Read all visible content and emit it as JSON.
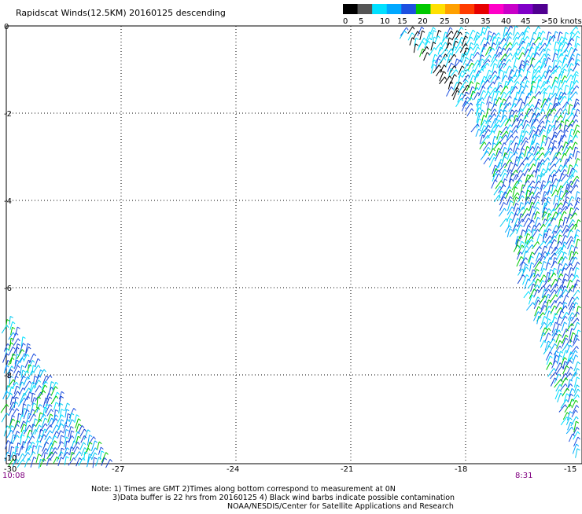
{
  "title": "Rapidscat Winds(12.5KM) 20160125 descending",
  "colorbar": {
    "labels": [
      "0",
      "5",
      "10",
      "15",
      "20",
      "25",
      "30",
      "35",
      "40",
      "45",
      ">50 knots"
    ],
    "colors": [
      "#000000",
      "#555555",
      "#00e0ff",
      "#00a8ff",
      "#1e50e0",
      "#00c800",
      "#ffe000",
      "#ffa000",
      "#ff3c00",
      "#e60000",
      "#ff00c8",
      "#c800c8",
      "#8000c8",
      "#500090"
    ]
  },
  "map": {
    "x_ticks": [
      "-30",
      "-27",
      "-24",
      "-21",
      "-18",
      "-15"
    ],
    "y_ticks": [
      "0",
      "-2",
      "-4",
      "-6",
      "-8",
      "-10"
    ],
    "x_range": [
      -30,
      -15
    ],
    "y_range": [
      -10,
      0
    ],
    "grid": "dotted",
    "times": {
      "left": "10:08",
      "right": "8:31"
    }
  },
  "notes": {
    "line1": "Note: 1) Times are GMT 2)Times along bottom correspond to measurement at 0N",
    "line2": "3)Data buffer is 22 hrs from 20160125 4) Black wind barbs indicate possible contamination",
    "line3": "NOAA/NESDIS/Center for Satellite Applications and Research"
  },
  "swaths": {
    "east": {
      "polygon": [
        [
          -19.7,
          0
        ],
        [
          -15,
          0
        ],
        [
          -15,
          -10
        ],
        [
          -17.8,
          -2
        ]
      ],
      "speed_range_knots": [
        5,
        20
      ]
    },
    "west": {
      "polygon": [
        [
          -30,
          -6.5
        ],
        [
          -27.2,
          -10
        ],
        [
          -30,
          -10
        ]
      ],
      "speed_range_knots": [
        5,
        20
      ]
    }
  }
}
